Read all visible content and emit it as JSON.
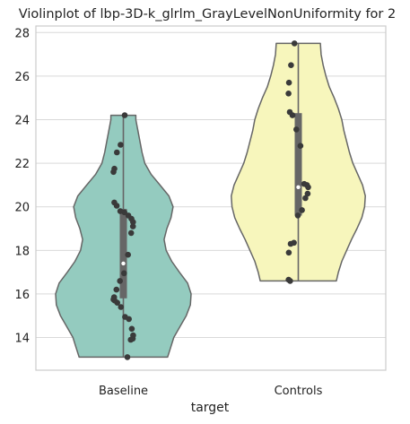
{
  "chart_data": {
    "type": "violin",
    "title": "Violinplot of lbp-3D-k_glrlm_GrayLevelNonUniformity for 2",
    "xlabel": "target",
    "ylabel": "",
    "ylim": [
      12.5,
      28.3
    ],
    "yticks": [
      14,
      16,
      18,
      20,
      22,
      24,
      26,
      28
    ],
    "grid": true,
    "groups": [
      {
        "category": "Baseline",
        "color": "#94cbbf",
        "min": 13.1,
        "q1": 15.8,
        "median": 17.4,
        "q3": 19.9,
        "max": 24.2,
        "density_profile": [
          [
            13.1,
            0.64
          ],
          [
            13.5,
            0.68
          ],
          [
            14.0,
            0.73
          ],
          [
            14.5,
            0.82
          ],
          [
            15.0,
            0.91
          ],
          [
            15.5,
            0.97
          ],
          [
            16.0,
            0.98
          ],
          [
            16.5,
            0.93
          ],
          [
            17.0,
            0.81
          ],
          [
            17.5,
            0.7
          ],
          [
            18.0,
            0.62
          ],
          [
            18.5,
            0.59
          ],
          [
            19.0,
            0.63
          ],
          [
            19.5,
            0.69
          ],
          [
            20.0,
            0.72
          ],
          [
            20.5,
            0.66
          ],
          [
            21.0,
            0.53
          ],
          [
            21.5,
            0.4
          ],
          [
            22.0,
            0.31
          ],
          [
            22.5,
            0.27
          ],
          [
            23.0,
            0.24
          ],
          [
            23.5,
            0.21
          ],
          [
            24.0,
            0.18
          ],
          [
            24.2,
            0.18
          ]
        ],
        "points": [
          13.1,
          13.9,
          13.95,
          14.1,
          14.4,
          14.85,
          14.95,
          15.4,
          15.6,
          15.7,
          15.75,
          15.85,
          16.2,
          16.6,
          16.95,
          17.8,
          18.8,
          19.1,
          19.3,
          19.45,
          19.6,
          19.75,
          19.8,
          20.05,
          20.2,
          21.6,
          21.75,
          22.5,
          22.85,
          24.2
        ]
      },
      {
        "category": "Controls",
        "color": "#f7f6bc",
        "min": 16.6,
        "q1": 19.6,
        "median": 20.9,
        "q3": 24.3,
        "max": 27.5,
        "density_profile": [
          [
            16.6,
            0.55
          ],
          [
            17.0,
            0.58
          ],
          [
            17.5,
            0.63
          ],
          [
            18.0,
            0.7
          ],
          [
            18.5,
            0.77
          ],
          [
            19.0,
            0.85
          ],
          [
            19.5,
            0.92
          ],
          [
            20.0,
            0.96
          ],
          [
            20.5,
            0.97
          ],
          [
            21.0,
            0.93
          ],
          [
            21.5,
            0.86
          ],
          [
            22.0,
            0.79
          ],
          [
            22.5,
            0.74
          ],
          [
            23.0,
            0.7
          ],
          [
            23.5,
            0.66
          ],
          [
            24.0,
            0.63
          ],
          [
            24.5,
            0.58
          ],
          [
            25.0,
            0.52
          ],
          [
            25.5,
            0.45
          ],
          [
            26.0,
            0.4
          ],
          [
            26.5,
            0.36
          ],
          [
            27.0,
            0.33
          ],
          [
            27.5,
            0.32
          ]
        ],
        "points": [
          16.6,
          16.65,
          17.9,
          18.3,
          18.35,
          19.6,
          19.85,
          20.4,
          20.6,
          20.9,
          21.0,
          21.05,
          22.8,
          23.55,
          24.2,
          24.35,
          25.2,
          25.7,
          26.5,
          27.5
        ]
      }
    ]
  }
}
